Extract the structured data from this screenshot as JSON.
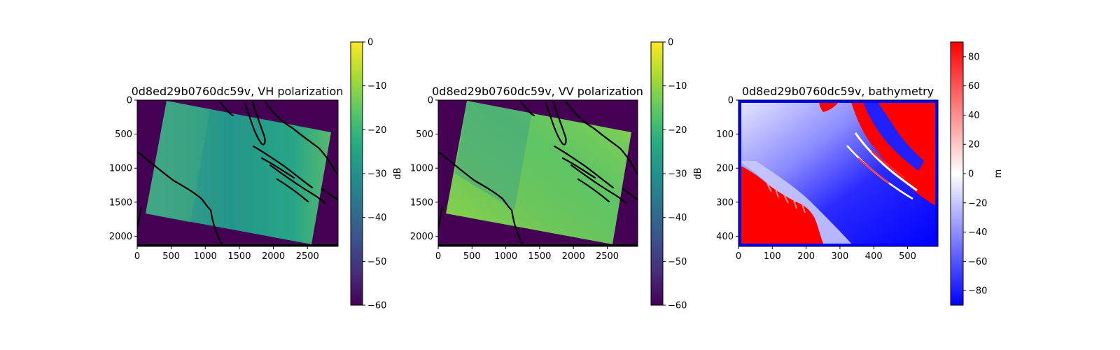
{
  "chart_data": [
    {
      "type": "heatmap",
      "title": "0d8ed29b0760dc59v, VH polarization",
      "xlim": [
        0,
        2950
      ],
      "ylim": [
        2150,
        0
      ],
      "xticks": [
        0,
        500,
        1000,
        1500,
        2000,
        2500
      ],
      "yticks": [
        0,
        500,
        1000,
        1500,
        2000
      ],
      "colorbar": {
        "label": "dB",
        "range": [
          -60,
          0
        ],
        "ticks": [
          0,
          -10,
          -20,
          -30,
          -40,
          -50,
          -60
        ],
        "colormap": "viridis"
      }
    },
    {
      "type": "heatmap",
      "title": "0d8ed29b0760dc59v, VV polarization",
      "xlim": [
        0,
        2950
      ],
      "ylim": [
        2150,
        0
      ],
      "xticks": [
        0,
        500,
        1000,
        1500,
        2000,
        2500
      ],
      "yticks": [
        0,
        500,
        1000,
        1500,
        2000
      ],
      "colorbar": {
        "label": "dB",
        "range": [
          -60,
          0
        ],
        "ticks": [
          0,
          -10,
          -20,
          -30,
          -40,
          -50,
          -60
        ],
        "colormap": "viridis"
      }
    },
    {
      "type": "heatmap",
      "title": "0d8ed29b0760dc59v, bathymetry",
      "xlim": [
        0,
        590
      ],
      "ylim": [
        430,
        0
      ],
      "xticks": [
        0,
        100,
        200,
        300,
        400,
        500
      ],
      "yticks": [
        0,
        100,
        200,
        300,
        400
      ],
      "colorbar": {
        "label": "m",
        "range": [
          -90,
          90
        ],
        "ticks": [
          80,
          60,
          40,
          20,
          0,
          -20,
          -40,
          -60,
          -80
        ],
        "colormap": "bwr"
      }
    }
  ]
}
